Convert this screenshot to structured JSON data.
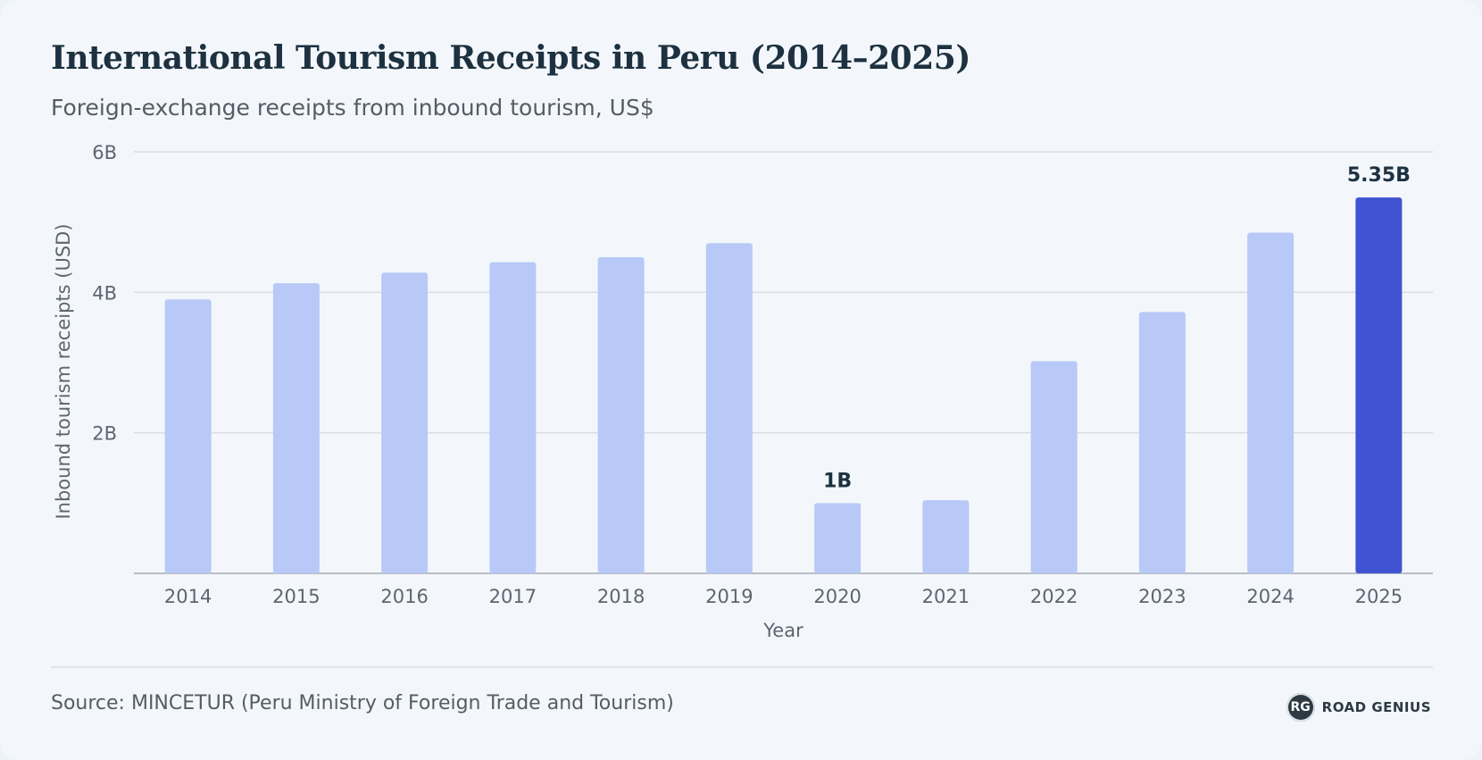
{
  "header": {
    "title": "International Tourism Receipts in Peru (2014–2025)",
    "subtitle": "Foreign-exchange receipts from inbound tourism, US$"
  },
  "footer": {
    "source": "Source: MINCETUR (Peru Ministry of Foreign Trade and Tourism)",
    "brand_badge": "RG",
    "brand_name": "ROAD GENIUS"
  },
  "colors": {
    "bar": "#b8c9f7",
    "highlight_bar": "#4053d3",
    "grid": "#d9dde2",
    "axis_text": "#5e6570",
    "label_text": "#1d3140"
  },
  "chart_data": {
    "type": "bar",
    "title": "International Tourism Receipts in Peru (2014–2025)",
    "subtitle": "Foreign-exchange receipts from inbound tourism, US$",
    "xlabel": "Year",
    "ylabel": "Inbound tourism receipts (USD)",
    "categories": [
      "2014",
      "2015",
      "2016",
      "2017",
      "2018",
      "2019",
      "2020",
      "2021",
      "2022",
      "2023",
      "2024",
      "2025"
    ],
    "values": [
      3.9,
      4.13,
      4.28,
      4.43,
      4.5,
      4.7,
      1.0,
      1.04,
      3.02,
      3.72,
      4.85,
      5.35
    ],
    "unit": "B",
    "ylim": [
      0,
      6
    ],
    "yticks": [
      {
        "value": 2,
        "label": "2B"
      },
      {
        "value": 4,
        "label": "4B"
      },
      {
        "value": 6,
        "label": "6B"
      }
    ],
    "data_labels": [
      {
        "category": "2020",
        "label": "1B"
      },
      {
        "category": "2025",
        "label": "5.35B"
      }
    ],
    "highlight": "2025",
    "grid": true,
    "legend": "none"
  }
}
